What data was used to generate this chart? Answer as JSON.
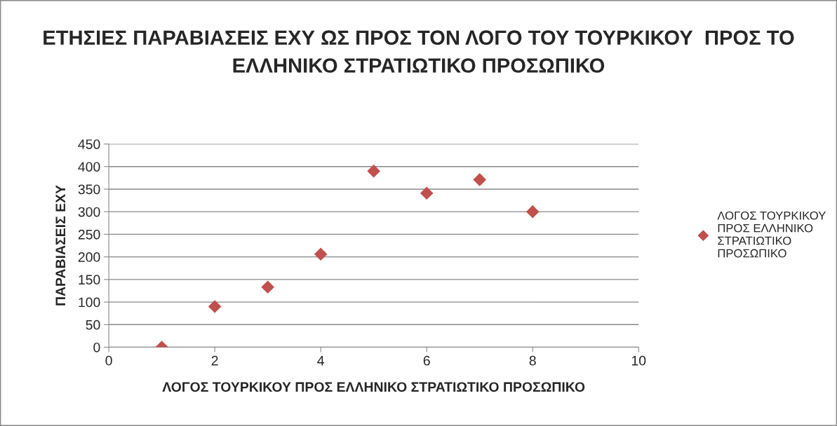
{
  "chart_data": {
    "type": "scatter",
    "title": "ΕΤΗΣΙΕΣ ΠΑΡΑΒΙΑΣΕΙΣ ΕΧΥ ΩΣ ΠΡΟΣ ΤΟΝ ΛΟΓΟ ΤΟΥ ΤΟΥΡΚΙΚΟΥ  ΠΡΟΣ ΤΟ ΕΛΛΗΝΙΚΟ ΣΤΡΑΤΙΩΤΙΚΟ ΠΡΟΣΩΠΙΚΟ",
    "xlabel": "ΛΟΓΟΣ ΤΟΥΡΚΙΚΟΥ ΠΡΟΣ ΕΛΛΗΝΙΚΟ ΣΤΡΑΤΙΩΤΙΚΟ ΠΡΟΣΩΠΙΚΟ",
    "ylabel": "ΠΑΡΑΒΙΑΣΕΙΣ ΕΧΥ",
    "x": [
      1,
      2,
      3,
      4,
      5,
      6,
      7,
      8
    ],
    "series": [
      {
        "name": "ΛΟΓΟΣ ΤΟΥΡΚΙΚΟΥ ΠΡΟΣ ΕΛΛΗΝΙΚΟ ΣΤΡΑΤΙΩΤΙΚΟ ΠΡΟΣΩΠΙΚΟ",
        "color": "#c0504d",
        "values": [
          0,
          90,
          133,
          206,
          390,
          341,
          371,
          300
        ]
      }
    ],
    "xlim": [
      0,
      10
    ],
    "xticks": [
      0,
      2,
      4,
      6,
      8,
      10
    ],
    "ylim": [
      0,
      450
    ],
    "yticks": [
      0,
      50,
      100,
      150,
      200,
      250,
      300,
      350,
      400,
      450
    ],
    "grid": "y",
    "legend": "right",
    "marker": "diamond"
  }
}
